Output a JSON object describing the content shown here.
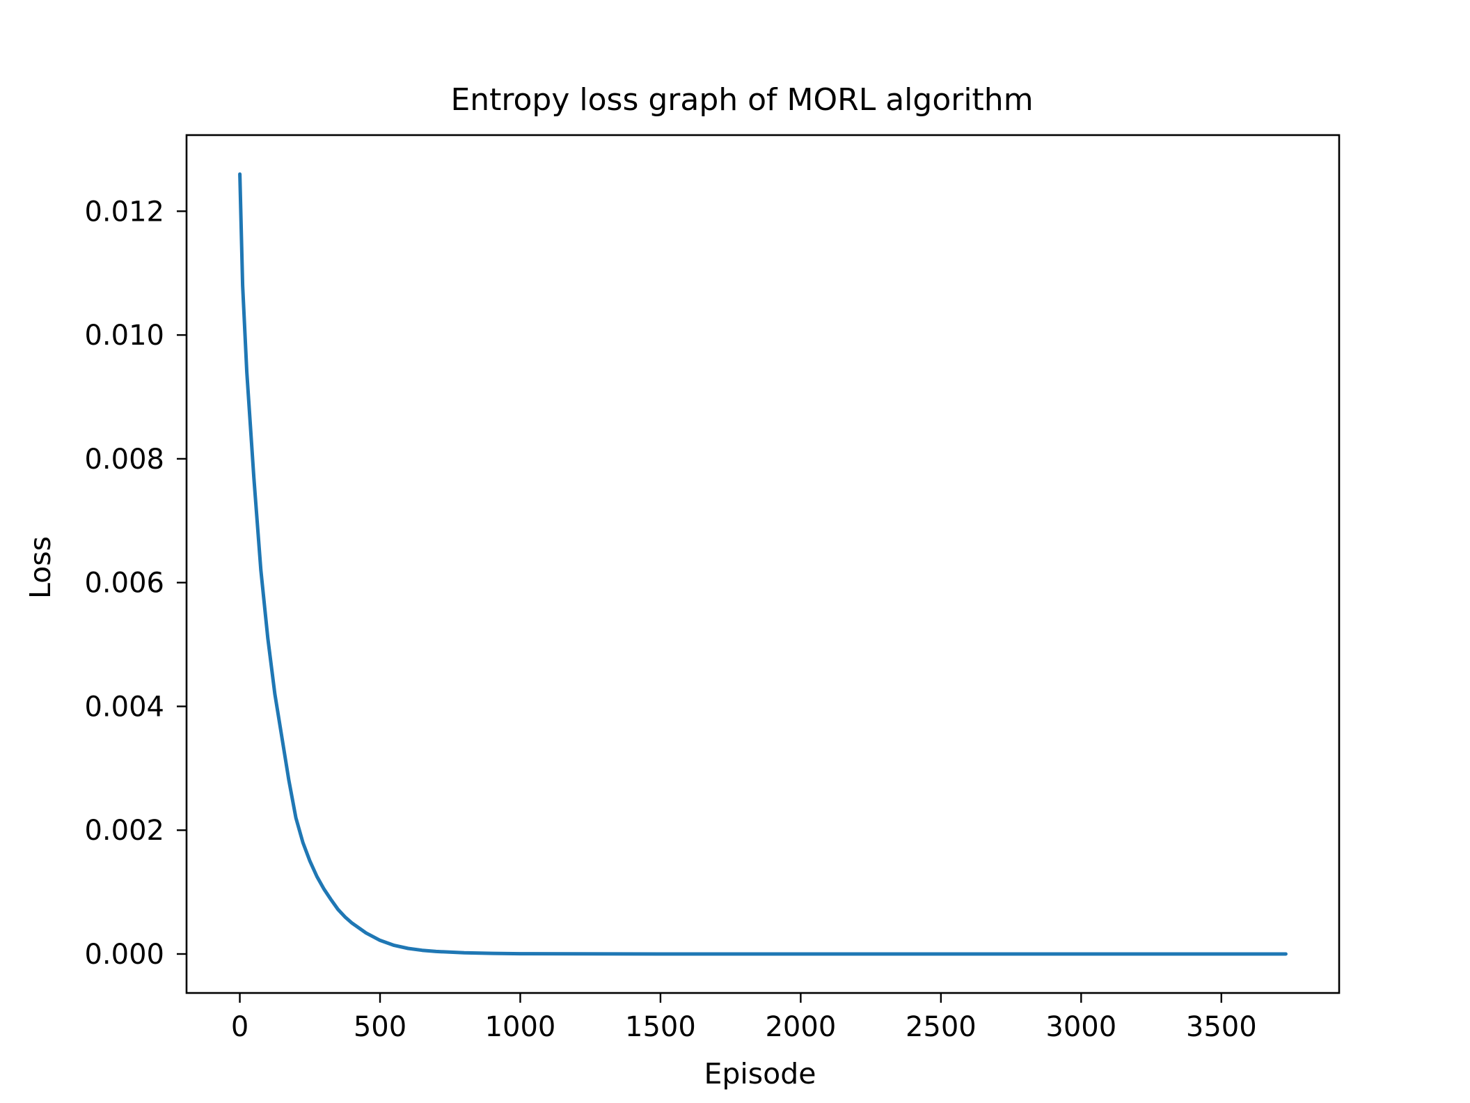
{
  "chart_data": {
    "type": "line",
    "title": "Entropy loss graph of MORL algorithm",
    "xlabel": "Episode",
    "ylabel": "Loss",
    "xlim": [
      -190,
      3920
    ],
    "ylim": [
      -0.00063,
      0.01323
    ],
    "xticks": [
      0,
      500,
      1000,
      1500,
      2000,
      2500,
      3000,
      3500
    ],
    "xtick_labels": [
      "0",
      "500",
      "1000",
      "1500",
      "2000",
      "2500",
      "3000",
      "3500"
    ],
    "yticks": [
      0.0,
      0.002,
      0.004,
      0.006,
      0.008,
      0.01,
      0.012
    ],
    "ytick_labels": [
      "0.000",
      "0.002",
      "0.004",
      "0.006",
      "0.008",
      "0.010",
      "0.012"
    ],
    "grid": false,
    "legend": false,
    "line_color": "#1f77b4",
    "series": [
      {
        "x": [
          0,
          10,
          25,
          50,
          75,
          100,
          125,
          150,
          175,
          200,
          225,
          250,
          275,
          300,
          325,
          350,
          375,
          400,
          450,
          500,
          550,
          600,
          650,
          700,
          800,
          900,
          1000,
          1500,
          2000,
          2500,
          3000,
          3500,
          3730
        ],
        "values": [
          0.0126,
          0.0108,
          0.0094,
          0.0077,
          0.0062,
          0.0051,
          0.0042,
          0.0035,
          0.0028,
          0.0022,
          0.0018,
          0.0015,
          0.00125,
          0.00105,
          0.00088,
          0.00072,
          0.0006,
          0.0005,
          0.00034,
          0.00022,
          0.00014,
          9e-05,
          6e-05,
          4e-05,
          2e-05,
          1e-05,
          5e-06,
          0.0,
          0.0,
          0.0,
          0.0,
          0.0,
          0.0
        ]
      }
    ]
  }
}
